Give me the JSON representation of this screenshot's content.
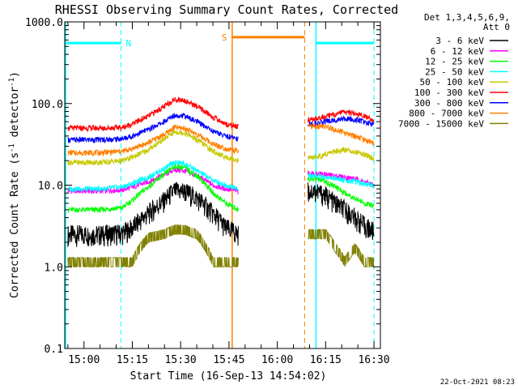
{
  "chart_data": {
    "type": "line",
    "title": "RHESSI Observing Summary Count Rates, Corrected",
    "xlabel": "Start Time (16-Sep-13 14:54:02)",
    "ylabel_main": "Corrected Count Rate (s",
    "ylabel_sup1": "-1",
    "ylabel_mid": " detector",
    "ylabel_sup2": "-1",
    "ylabel_end": ")",
    "y_scale": "log",
    "ylim": [
      0.1,
      1000
    ],
    "xlim_min": [
      894.03,
      992
    ],
    "x_ticks": [
      {
        "label": "15:00",
        "value": 900
      },
      {
        "label": "15:15",
        "value": 915
      },
      {
        "label": "15:30",
        "value": 930
      },
      {
        "label": "15:45",
        "value": 945
      },
      {
        "label": "16:00",
        "value": 960
      },
      {
        "label": "16:15",
        "value": 975
      },
      {
        "label": "16:30",
        "value": 990
      }
    ],
    "y_ticks": [
      {
        "label": "0.1",
        "value": 0.1
      },
      {
        "label": "1.0",
        "value": 1
      },
      {
        "label": "10.0",
        "value": 10
      },
      {
        "label": "100.0",
        "value": 100
      },
      {
        "label": "1000.0",
        "value": 1000
      }
    ],
    "legend": {
      "header1": "Det 1,3,4,5,6,9,",
      "header2": "Att 0",
      "placement": "right"
    },
    "series": [
      {
        "name": "3 - 6 keV",
        "color": "#000000",
        "x": [
          895,
          905,
          912,
          915,
          920,
          925,
          928,
          931,
          935,
          940,
          944,
          948
        ],
        "y": [
          2.5,
          2.5,
          2.6,
          3.0,
          4.5,
          6.5,
          8.5,
          8.5,
          7,
          4.5,
          3,
          2.5
        ]
      },
      {
        "name": "6 - 12 keV",
        "color": "#ff00ff",
        "x": [
          895,
          905,
          912,
          915,
          920,
          925,
          928,
          931,
          935,
          940,
          944,
          948
        ],
        "y": [
          8.5,
          8.5,
          8.8,
          9.5,
          11,
          13.5,
          15.5,
          15,
          13,
          10,
          9,
          8.5
        ]
      },
      {
        "name": "12 - 25 keV",
        "color": "#00ff00",
        "x": [
          895,
          905,
          912,
          915,
          920,
          925,
          928,
          931,
          935,
          940,
          944,
          948
        ],
        "y": [
          5,
          5,
          5.3,
          6.5,
          9.5,
          13.5,
          17,
          16.5,
          13,
          8,
          6,
          5
        ]
      },
      {
        "name": "25 - 50 keV",
        "color": "#00ffff",
        "x": [
          895,
          905,
          912,
          915,
          920,
          925,
          928,
          931,
          935,
          940,
          944,
          948
        ],
        "y": [
          9,
          9,
          9.5,
          10.5,
          12.5,
          16,
          19,
          18.5,
          15,
          11.5,
          10,
          9
        ]
      },
      {
        "name": "50 - 100 keV",
        "color": "#c8c800",
        "x": [
          895,
          905,
          912,
          915,
          920,
          925,
          928,
          931,
          935,
          940,
          944,
          948
        ],
        "y": [
          19,
          19,
          20,
          22,
          27,
          37,
          45,
          44,
          36,
          26,
          22,
          20
        ]
      },
      {
        "name": "100 - 300 keV",
        "color": "#ff0000",
        "x": [
          895,
          905,
          912,
          915,
          920,
          925,
          928,
          931,
          935,
          940,
          944,
          948
        ],
        "y": [
          50,
          50,
          51,
          56,
          70,
          92,
          112,
          110,
          92,
          68,
          56,
          52
        ]
      },
      {
        "name": "300 - 800 keV",
        "color": "#0000ff",
        "x": [
          895,
          905,
          912,
          915,
          920,
          925,
          928,
          931,
          935,
          940,
          944,
          948
        ],
        "y": [
          36,
          36,
          37,
          40,
          48,
          60,
          72,
          71,
          60,
          46,
          40,
          37
        ]
      },
      {
        "name": "800 - 7000 keV",
        "color": "#ff8000",
        "x": [
          895,
          905,
          912,
          915,
          920,
          925,
          928,
          931,
          935,
          940,
          944,
          948
        ],
        "y": [
          25,
          25,
          26,
          28,
          33,
          42,
          51,
          50,
          42,
          32,
          28,
          26
        ]
      },
      {
        "name": "7000 - 15000 keV",
        "color": "#808000",
        "x": [
          895,
          905,
          912,
          915,
          920,
          925,
          928,
          931,
          935,
          940,
          944,
          948
        ],
        "y": [
          1.0,
          1.0,
          1.0,
          1.0,
          2.0,
          2.2,
          2.5,
          2.5,
          2.2,
          1.0,
          1.0,
          1.0
        ]
      }
    ],
    "series_after_gap": {
      "x": [
        969.5,
        972,
        975,
        978,
        981,
        984,
        987,
        990
      ],
      "values": [
        [
          8.5,
          8.5,
          7.5,
          6,
          5,
          4,
          3.2,
          2.7
        ],
        [
          14,
          14,
          13.5,
          13,
          12.5,
          12,
          11,
          10
        ],
        [
          12,
          12,
          11,
          9.5,
          8,
          7,
          6,
          5.5
        ],
        [
          13,
          13,
          12.5,
          12,
          11.5,
          11,
          10.5,
          10
        ],
        [
          21,
          22,
          24,
          26,
          27,
          26,
          24,
          21
        ],
        [
          62,
          65,
          70,
          75,
          78,
          76,
          70,
          62
        ],
        [
          55,
          57,
          60,
          64,
          66,
          64,
          60,
          55
        ],
        [
          52,
          53,
          52,
          48,
          44,
          40,
          36,
          32
        ],
        [
          2.2,
          2.2,
          2.2,
          1.5,
          1.0,
          1.5,
          1.0,
          1.0
        ]
      ]
    },
    "flags": [
      {
        "label": "N",
        "color": "#00ffff",
        "x": [
          894.5,
          911.5
        ],
        "y": 550,
        "end_x": 911.5
      },
      {
        "label": "N",
        "color": "#00ffff",
        "x": [
          972,
          990
        ],
        "y": 550,
        "start_x": 972,
        "end_x": 990
      },
      {
        "label": "S",
        "color": "#ff8000",
        "x": [
          946,
          968.5
        ],
        "y": 650,
        "start_x": 946,
        "end_x": 968.5
      }
    ],
    "date_stamp": "22-Oct-2021 08:23"
  }
}
